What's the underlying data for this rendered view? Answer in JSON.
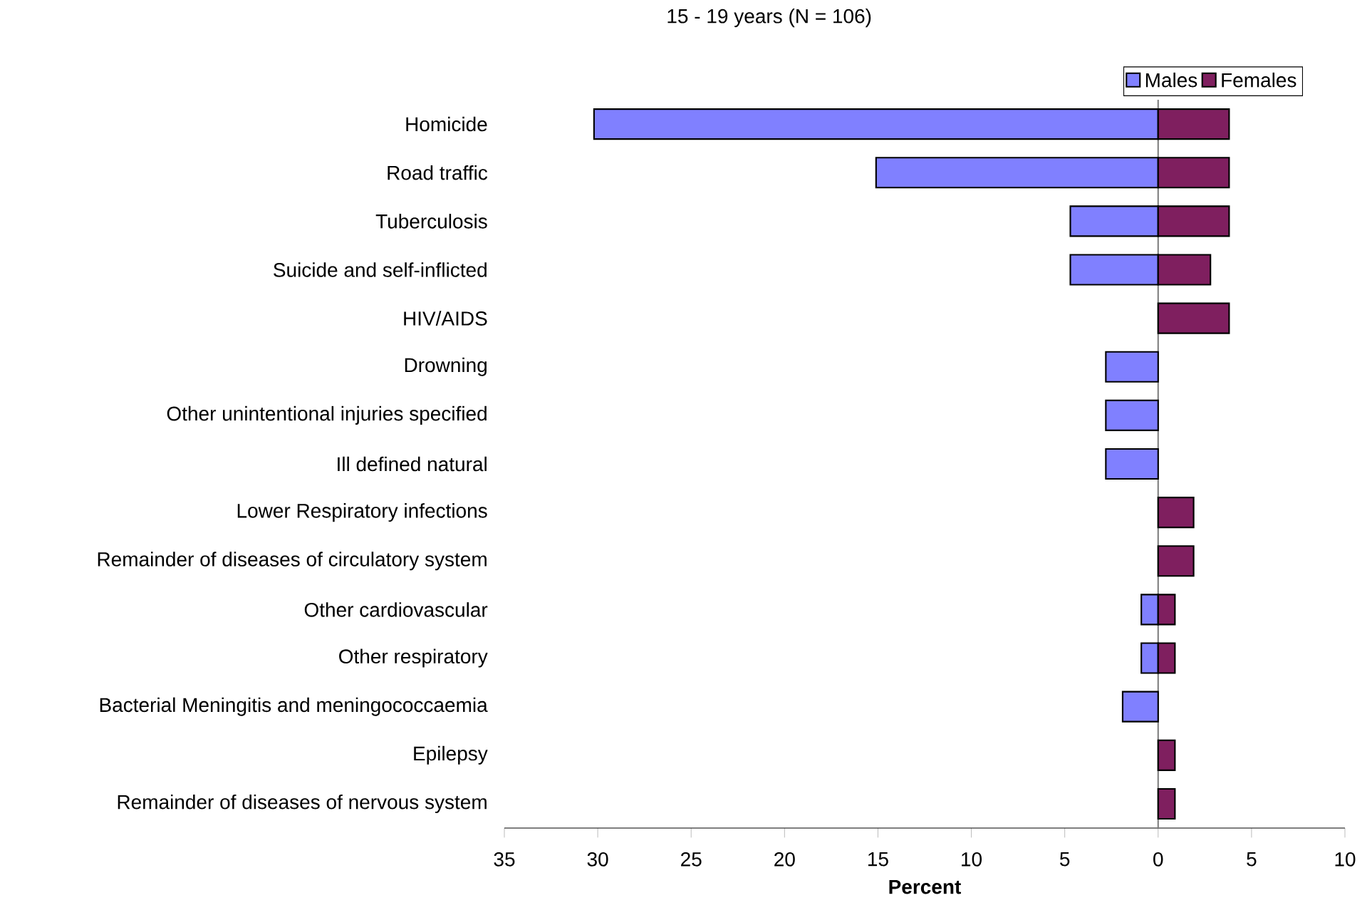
{
  "chart_data": {
    "type": "bar",
    "orientation": "horizontal",
    "title": "15 - 19 years (N = 106)",
    "xlabel": "Percent",
    "categories": [
      "Homicide",
      "Road traffic",
      "Tuberculosis",
      "Suicide and self-inflicted",
      "HIV/AIDS",
      "Drowning",
      "Other unintentional injuries specified",
      "Ill defined natural",
      "Lower Respiratory infections",
      "Remainder of diseases of circulatory system",
      "Other cardiovascular",
      "Other respiratory",
      "Bacterial Meningitis and meningococcaemia",
      "Epilepsy",
      "Remainder of diseases of nervous system"
    ],
    "series": [
      {
        "name": "Males",
        "color": "#8080ff",
        "values": [
          -30.2,
          -15.1,
          -4.7,
          -4.7,
          null,
          -2.8,
          -2.8,
          -2.8,
          null,
          null,
          -0.9,
          -0.9,
          -1.9,
          null,
          null
        ]
      },
      {
        "name": "Females",
        "color": "#7f1f5f",
        "values": [
          3.8,
          3.8,
          3.8,
          2.8,
          3.8,
          null,
          null,
          null,
          1.9,
          1.9,
          0.9,
          0.9,
          null,
          0.9,
          0.9
        ]
      }
    ],
    "xlim": [
      -35,
      10
    ],
    "xticks": [
      {
        "value": -35,
        "label": "35"
      },
      {
        "value": -30,
        "label": "30"
      },
      {
        "value": -25,
        "label": "25"
      },
      {
        "value": -20,
        "label": "20"
      },
      {
        "value": -15,
        "label": "15"
      },
      {
        "value": -10,
        "label": "10"
      },
      {
        "value": -5,
        "label": "5"
      },
      0,
      5,
      10
    ],
    "ref_lines": [
      {
        "axis": "x",
        "value": 0,
        "color": "#808080"
      }
    ],
    "grid": false,
    "legend": "top right"
  }
}
